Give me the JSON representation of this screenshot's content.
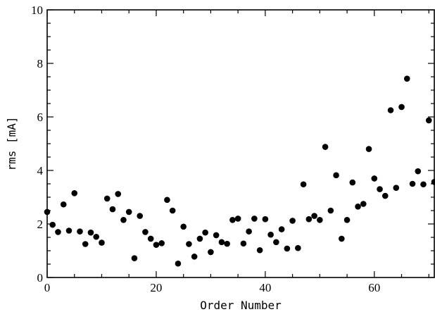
{
  "chart_data": {
    "type": "scatter",
    "title": "",
    "xlabel": "Order Number",
    "ylabel": "rms  [mA]",
    "xlim": [
      0,
      71
    ],
    "ylim": [
      0,
      10
    ],
    "xticks": [
      0,
      20,
      40,
      60
    ],
    "yticks": [
      0,
      2,
      4,
      6,
      8,
      10
    ],
    "x_minor_step": 5,
    "y_minor_step": 0.5,
    "grid": false,
    "legend": "none",
    "marker_color": "#000000",
    "series": [
      {
        "x": [
          0,
          1,
          2,
          3,
          4,
          5,
          6,
          7,
          8,
          9,
          10,
          11,
          12,
          13,
          14,
          15,
          16,
          17,
          18,
          19,
          20,
          21,
          22,
          23,
          24,
          25,
          26,
          27,
          28,
          29,
          30,
          31,
          32,
          33,
          34,
          35,
          36,
          37,
          38,
          39,
          40,
          41,
          42,
          43,
          44,
          45,
          46,
          47,
          48,
          49,
          50,
          51,
          52,
          53,
          54,
          55,
          56,
          57,
          58,
          59,
          60,
          61,
          62,
          63,
          64,
          65,
          66,
          67,
          68,
          69,
          70,
          71
        ],
        "y": [
          2.45,
          1.97,
          1.7,
          2.73,
          1.75,
          3.15,
          1.72,
          1.25,
          1.68,
          1.52,
          1.3,
          2.95,
          2.55,
          3.12,
          2.15,
          2.45,
          0.72,
          2.3,
          1.7,
          1.45,
          1.22,
          1.28,
          2.9,
          2.5,
          0.52,
          1.9,
          1.25,
          0.78,
          1.45,
          1.68,
          0.95,
          1.58,
          1.32,
          1.26,
          2.15,
          2.2,
          1.27,
          1.72,
          2.2,
          1.02,
          2.18,
          1.6,
          1.32,
          1.8,
          1.08,
          2.12,
          1.1,
          3.48,
          2.18,
          2.3,
          2.15,
          4.88,
          2.5,
          3.82,
          1.45,
          2.15,
          3.55,
          2.65,
          2.75,
          4.8,
          3.7,
          3.3,
          3.05,
          6.25,
          3.35,
          6.37,
          7.43,
          3.5,
          3.97,
          3.48,
          5.87,
          3.57
        ]
      }
    ]
  }
}
